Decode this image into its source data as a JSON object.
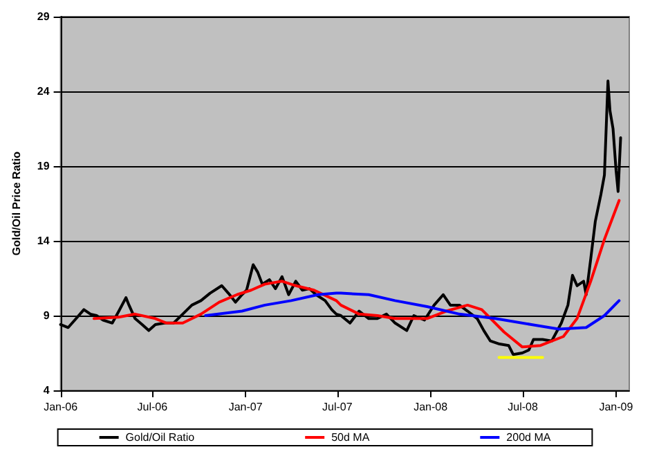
{
  "chart_data": {
    "type": "line",
    "ylabel": "Gold/Oil Price Ratio",
    "xlim": [
      "2006-01-01",
      "2009-01-27"
    ],
    "ylim": [
      4,
      29
    ],
    "yticks": [
      4,
      9,
      14,
      19,
      24,
      29
    ],
    "xticks": [
      {
        "value": "2006-01-01",
        "label": "Jan-06"
      },
      {
        "value": "2006-07-01",
        "label": "Jul-06"
      },
      {
        "value": "2007-01-01",
        "label": "Jan-07"
      },
      {
        "value": "2007-07-01",
        "label": "Jul-07"
      },
      {
        "value": "2008-01-01",
        "label": "Jan-08"
      },
      {
        "value": "2008-07-01",
        "label": "Jul-08"
      },
      {
        "value": "2009-01-01",
        "label": "Jan-09"
      }
    ],
    "grid": "y",
    "legend": "bottom",
    "marker": "none",
    "line_style": "solid",
    "series": [
      {
        "name": "Gold/Oil Ratio",
        "color": "#000000",
        "x": [
          "2006-01-01",
          "2006-01-16",
          "2006-01-29",
          "2006-02-16",
          "2006-03-01",
          "2006-03-13",
          "2006-03-26",
          "2006-04-13",
          "2006-04-26",
          "2006-05-10",
          "2006-05-16",
          "2006-05-28",
          "2006-06-11",
          "2006-06-24",
          "2006-07-07",
          "2006-07-25",
          "2006-08-12",
          "2006-08-30",
          "2006-09-17",
          "2006-10-05",
          "2006-10-23",
          "2006-11-15",
          "2006-11-28",
          "2006-12-12",
          "2006-12-25",
          "2007-01-03",
          "2007-01-16",
          "2007-01-25",
          "2007-02-03",
          "2007-02-17",
          "2007-03-01",
          "2007-03-14",
          "2007-03-27",
          "2007-04-10",
          "2007-04-23",
          "2007-05-07",
          "2007-05-20",
          "2007-06-07",
          "2007-06-20",
          "2007-06-29",
          "2007-07-08",
          "2007-07-26",
          "2007-08-13",
          "2007-09-01",
          "2007-09-18",
          "2007-10-06",
          "2007-10-23",
          "2007-11-15",
          "2007-11-29",
          "2007-12-20",
          "2008-01-08",
          "2008-01-26",
          "2008-02-09",
          "2008-02-27",
          "2008-03-14",
          "2008-04-02",
          "2008-04-15",
          "2008-04-28",
          "2008-05-16",
          "2008-06-03",
          "2008-06-12",
          "2008-06-30",
          "2008-07-13",
          "2008-07-22",
          "2008-08-09",
          "2008-08-27",
          "2008-09-15",
          "2008-09-28",
          "2008-10-07",
          "2008-10-16",
          "2008-10-29",
          "2008-11-03",
          "2008-11-12",
          "2008-11-21",
          "2008-12-02",
          "2008-12-09",
          "2008-12-16",
          "2008-12-20",
          "2008-12-26",
          "2009-01-01",
          "2009-01-05",
          "2009-01-10"
        ],
        "values": [
          8.4,
          8.2,
          8.7,
          9.4,
          9.1,
          9.0,
          8.7,
          8.5,
          9.3,
          10.2,
          9.7,
          8.8,
          8.4,
          8.0,
          8.4,
          8.5,
          8.5,
          9.1,
          9.7,
          10.0,
          10.5,
          11.0,
          10.5,
          9.9,
          10.4,
          10.7,
          12.4,
          11.9,
          11.1,
          11.4,
          10.8,
          11.6,
          10.4,
          11.3,
          10.7,
          10.8,
          10.4,
          10.0,
          9.4,
          9.1,
          9.0,
          8.5,
          9.3,
          8.8,
          8.8,
          9.1,
          8.5,
          8.0,
          9.0,
          8.7,
          9.7,
          10.4,
          9.7,
          9.7,
          9.3,
          8.8,
          8.0,
          7.3,
          7.1,
          7.0,
          6.4,
          6.5,
          6.7,
          7.4,
          7.4,
          7.3,
          8.5,
          9.7,
          11.7,
          11.0,
          11.3,
          10.4,
          12.8,
          15.3,
          17.1,
          18.4,
          24.7,
          22.7,
          21.5,
          18.7,
          17.3,
          20.9
        ]
      },
      {
        "name": "50d MA",
        "color": "#ff0000",
        "x": [
          "2006-03-08",
          "2006-04-26",
          "2006-05-28",
          "2006-07-07",
          "2006-07-29",
          "2006-08-30",
          "2006-10-05",
          "2006-11-10",
          "2006-12-15",
          "2007-01-12",
          "2007-02-08",
          "2007-03-14",
          "2007-04-10",
          "2007-05-16",
          "2007-06-29",
          "2007-07-08",
          "2007-08-13",
          "2007-09-18",
          "2007-10-23",
          "2007-12-25",
          "2008-02-01",
          "2008-03-14",
          "2008-04-11",
          "2008-05-25",
          "2008-06-30",
          "2008-08-05",
          "2008-09-19",
          "2008-10-16",
          "2008-11-12",
          "2008-12-09",
          "2009-01-07"
        ],
        "values": [
          8.8,
          8.9,
          9.1,
          8.8,
          8.5,
          8.5,
          9.1,
          9.9,
          10.4,
          10.7,
          11.1,
          11.3,
          11.0,
          10.7,
          10.0,
          9.7,
          9.1,
          9.0,
          8.8,
          8.8,
          9.3,
          9.7,
          9.4,
          7.9,
          6.9,
          7.0,
          7.6,
          8.8,
          11.3,
          14.1,
          16.7
        ]
      },
      {
        "name": "200d MA",
        "color": "#0000ff",
        "x": [
          "2006-10-14",
          "2006-12-25",
          "2007-02-08",
          "2007-04-01",
          "2007-05-24",
          "2007-06-29",
          "2007-07-08",
          "2007-09-01",
          "2007-10-23",
          "2007-12-25",
          "2008-02-27",
          "2008-05-08",
          "2008-07-18",
          "2008-09-10",
          "2008-11-03",
          "2008-12-09",
          "2009-01-07"
        ],
        "values": [
          9.0,
          9.3,
          9.7,
          10.0,
          10.4,
          10.5,
          10.5,
          10.4,
          10.0,
          9.6,
          9.1,
          8.8,
          8.4,
          8.1,
          8.2,
          9.0,
          10.0
        ]
      },
      {
        "color": "#ffff00",
        "x": [
          "2008-05-15",
          "2008-08-09"
        ],
        "values": [
          6.2,
          6.2
        ]
      }
    ]
  }
}
